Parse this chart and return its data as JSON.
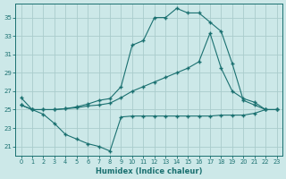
{
  "xlabel": "Humidex (Indice chaleur)",
  "bg_color": "#cce8e8",
  "grid_color": "#aacccc",
  "line_color": "#1a7070",
  "xlim": [
    -0.5,
    23.5
  ],
  "ylim": [
    20.0,
    36.5
  ],
  "yticks": [
    21,
    23,
    25,
    27,
    29,
    31,
    33,
    35
  ],
  "xticks": [
    0,
    1,
    2,
    3,
    4,
    5,
    6,
    7,
    8,
    9,
    10,
    11,
    12,
    13,
    14,
    15,
    16,
    17,
    18,
    19,
    20,
    21,
    22,
    23
  ],
  "line1_x": [
    0,
    1,
    2,
    3,
    4,
    5,
    6,
    7,
    8,
    9,
    10,
    11,
    12,
    13,
    14,
    15,
    16,
    17,
    18,
    19,
    20,
    21,
    22,
    23
  ],
  "line1_y": [
    26.3,
    25.0,
    25.0,
    25.0,
    25.1,
    25.3,
    25.6,
    26.0,
    26.2,
    27.5,
    32.0,
    32.5,
    35.0,
    35.0,
    36.0,
    35.5,
    35.5,
    34.5,
    33.5,
    30.0,
    26.0,
    25.5,
    25.0,
    25.0
  ],
  "line2_x": [
    0,
    1,
    2,
    3,
    4,
    5,
    6,
    7,
    8,
    9,
    10,
    11,
    12,
    13,
    14,
    15,
    16,
    17,
    18,
    19,
    20,
    21,
    22,
    23
  ],
  "line2_y": [
    25.5,
    25.0,
    25.0,
    25.0,
    25.1,
    25.2,
    25.4,
    25.5,
    25.7,
    26.3,
    27.0,
    27.5,
    28.0,
    28.5,
    29.0,
    29.5,
    30.2,
    33.3,
    29.5,
    27.0,
    26.2,
    25.8,
    25.0,
    25.0
  ],
  "line3_x": [
    0,
    1,
    2,
    3,
    4,
    5,
    6,
    7,
    8,
    9,
    10,
    11,
    12,
    13,
    14,
    15,
    16,
    17,
    18,
    19,
    20,
    21,
    22,
    23
  ],
  "line3_y": [
    25.5,
    25.0,
    24.5,
    23.5,
    22.3,
    21.8,
    21.3,
    21.0,
    20.5,
    24.2,
    24.3,
    24.3,
    24.3,
    24.3,
    24.3,
    24.3,
    24.3,
    24.3,
    24.4,
    24.4,
    24.4,
    24.6,
    25.0,
    25.0
  ]
}
